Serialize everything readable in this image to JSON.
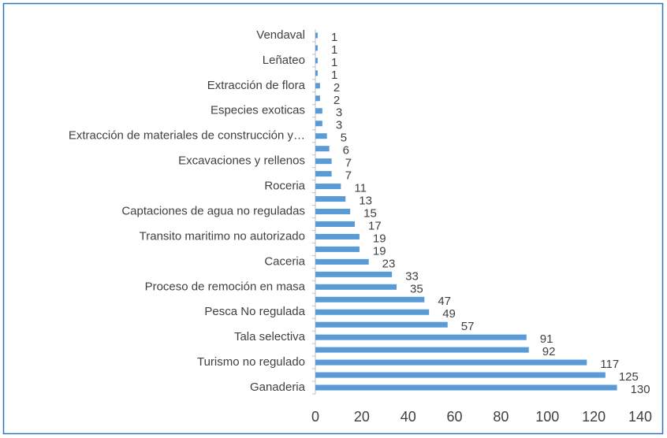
{
  "chart_data": {
    "type": "bar",
    "orientation": "horizontal",
    "categories": [
      "Vendaval",
      null,
      "Leñateo",
      null,
      "Extracción de flora",
      null,
      "Especies exoticas",
      null,
      "Extracción de materiales de construcción y…",
      null,
      "Excavaciones y rellenos",
      null,
      "Roceria",
      null,
      "Captaciones de agua no reguladas",
      null,
      "Transito maritimo no autorizado",
      null,
      "Caceria",
      null,
      "Proceso de remoción en masa",
      null,
      "Pesca No regulada",
      null,
      "Tala selectiva",
      null,
      "Turismo no regulado",
      null,
      "Ganaderia"
    ],
    "values": [
      1,
      1,
      1,
      1,
      2,
      2,
      3,
      3,
      5,
      6,
      7,
      7,
      11,
      13,
      15,
      17,
      19,
      19,
      23,
      33,
      35,
      47,
      49,
      57,
      91,
      92,
      117,
      125,
      130
    ],
    "color": "#5b9bd5",
    "xlim": [
      0,
      140
    ],
    "xticks": [
      0,
      20,
      40,
      60,
      80,
      100,
      120,
      140
    ]
  }
}
